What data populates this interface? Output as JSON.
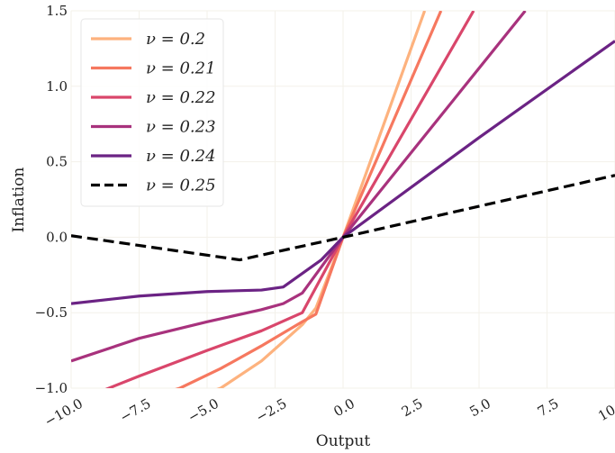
{
  "chart_data": {
    "type": "line",
    "title": "",
    "xlabel": "Output",
    "ylabel": "Inflation",
    "xlim": [
      -10,
      10
    ],
    "ylim": [
      -1,
      1.5
    ],
    "xticks": [
      "−10.0",
      "−7.5",
      "−5.0",
      "−2.5",
      "0.0",
      "2.5",
      "5.0",
      "7.5",
      "10.0"
    ],
    "yticks": [
      "−1.0",
      "−0.5",
      "0.0",
      "0.5",
      "1.0",
      "1.5"
    ],
    "xtick_values": [
      -10,
      -7.5,
      -5,
      -2.5,
      0,
      2.5,
      5,
      7.5,
      10
    ],
    "ytick_values": [
      -1,
      -0.5,
      0,
      0.5,
      1,
      1.5
    ],
    "grid": true,
    "legend_position": "top-left",
    "series": [
      {
        "name": "ν = 0.2",
        "color": "#fdb27e",
        "dash": "solid",
        "x": [
          -10,
          -4.5,
          -3,
          -1.5,
          -1,
          0,
          3
        ],
        "y": [
          -1.35,
          -1.0,
          -0.82,
          -0.58,
          -0.47,
          0,
          1.5
        ]
      },
      {
        "name": "ν = 0.21",
        "color": "#f6785f",
        "dash": "solid",
        "x": [
          -10,
          -6,
          -4.5,
          -3,
          -1.5,
          -1,
          0,
          3.6
        ],
        "y": [
          -1.22,
          -1.0,
          -0.87,
          -0.72,
          -0.56,
          -0.51,
          0,
          1.5
        ]
      },
      {
        "name": "ν = 0.22",
        "color": "#d9466b",
        "dash": "solid",
        "x": [
          -10,
          -7.5,
          -5,
          -3,
          -1.5,
          0,
          4.8
        ],
        "y": [
          -1.1,
          -0.92,
          -0.75,
          -0.62,
          -0.5,
          0,
          1.5
        ]
      },
      {
        "name": "ν = 0.23",
        "color": "#a8327d",
        "dash": "solid",
        "x": [
          -10,
          -7.5,
          -5,
          -3,
          -2.2,
          -1.5,
          0,
          6.7
        ],
        "y": [
          -0.82,
          -0.67,
          -0.56,
          -0.48,
          -0.44,
          -0.37,
          0,
          1.5
        ]
      },
      {
        "name": "ν = 0.24",
        "color": "#6b2384",
        "dash": "solid",
        "x": [
          -10,
          -7.5,
          -5,
          -3,
          -2.2,
          -0.8,
          0,
          5,
          10
        ],
        "y": [
          -0.44,
          -0.39,
          -0.36,
          -0.35,
          -0.33,
          -0.15,
          0,
          0.66,
          1.3
        ]
      },
      {
        "name": "ν = 0.25",
        "color": "#000000",
        "dash": "dashed",
        "x": [
          -10,
          -3.8,
          0,
          10
        ],
        "y": [
          0.01,
          -0.15,
          0,
          0.41
        ]
      }
    ]
  }
}
